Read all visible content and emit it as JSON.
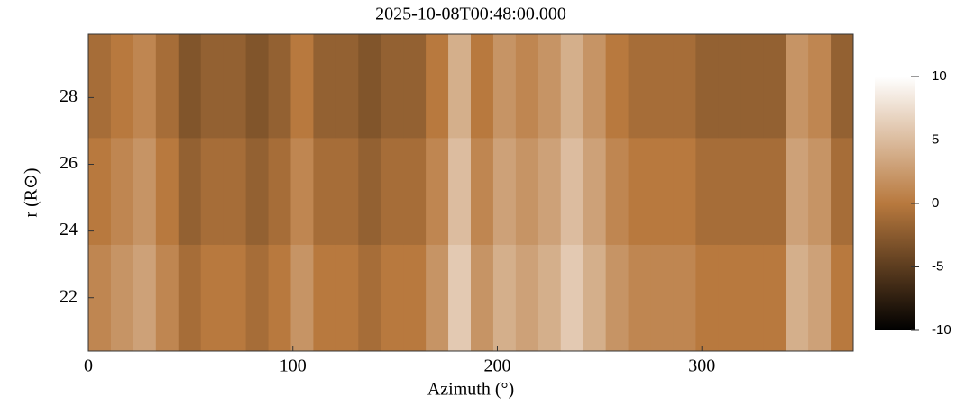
{
  "chart_data": {
    "type": "heatmap",
    "title": "2025-10-08T00:48:00.000",
    "x_label": "Azimuth (°)",
    "y_label": "r (R⊙)",
    "xbins": [
      0,
      11,
      22,
      33,
      44,
      55,
      66,
      77,
      88,
      99,
      110,
      121,
      132,
      143,
      154,
      165,
      176,
      187,
      198,
      209,
      220,
      231,
      242,
      253,
      264,
      275,
      286,
      297,
      308,
      319,
      330,
      341,
      352,
      363,
      374
    ],
    "ybins": [
      20.4,
      23.6,
      26.8,
      29.9
    ],
    "z": [
      [
        1,
        2,
        3,
        1,
        -1,
        0,
        0,
        -1,
        0,
        2,
        0,
        0,
        -1,
        0,
        0,
        2,
        6,
        2,
        4,
        3,
        4,
        6,
        4,
        2,
        1,
        1,
        1,
        0,
        0,
        0,
        0,
        4,
        3,
        0
      ],
      [
        0,
        1,
        2,
        0,
        -2,
        -1,
        -1,
        -2,
        -1,
        1,
        -1,
        -1,
        -2,
        -1,
        -1,
        1,
        5,
        1,
        3,
        2,
        3,
        5,
        3,
        1,
        0,
        0,
        0,
        -1,
        -1,
        -1,
        -1,
        3,
        2,
        -1
      ],
      [
        -1,
        0,
        1,
        -1,
        -3,
        -2,
        -2,
        -3,
        -2,
        0,
        -2,
        -2,
        -3,
        -2,
        -2,
        0,
        4,
        0,
        2,
        1,
        2,
        4,
        2,
        0,
        -1,
        -1,
        -1,
        -2,
        -2,
        -2,
        -2,
        2,
        1,
        -2
      ]
    ],
    "xlim": [
      0,
      374
    ],
    "ylim": [
      20.4,
      29.9
    ],
    "xticks": [
      0,
      100,
      200,
      300
    ],
    "yticks": [
      22,
      24,
      26,
      28
    ],
    "clim": [
      -10,
      10
    ],
    "cticks": [
      10,
      5,
      0,
      -5,
      -10
    ],
    "colormap": [
      "#000000",
      "#b8793e",
      "#ffffff"
    ]
  }
}
